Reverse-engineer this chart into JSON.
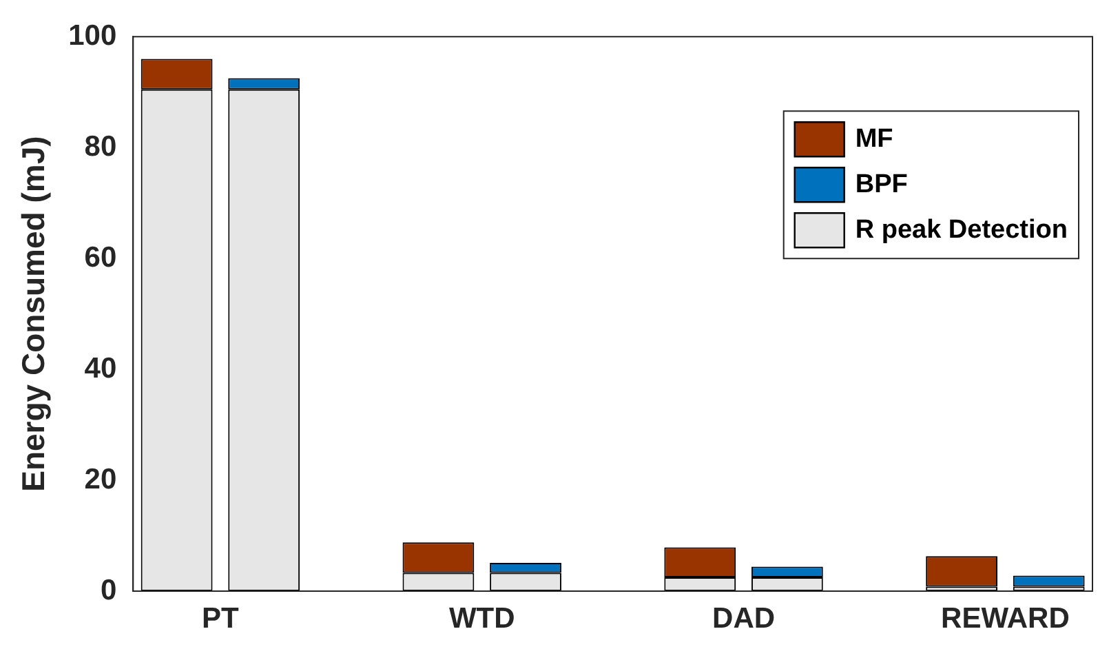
{
  "chart_data": {
    "type": "bar",
    "stacked": true,
    "ylabel": "Energy Consumed (mJ)",
    "categories": [
      "PT",
      null,
      null,
      "WTD",
      null,
      null,
      "DAD",
      null,
      null,
      "REWARD",
      null
    ],
    "series": [
      {
        "name": "R peak Detection",
        "color": "#e6e6e6",
        "values": [
          90.5,
          90.5,
          null,
          3.3,
          3.3,
          null,
          2.5,
          2.5,
          null,
          0.8,
          0.8
        ]
      },
      {
        "name": "MF",
        "color": "#993300",
        "values": [
          5.5,
          null,
          null,
          5.5,
          null,
          null,
          5.4,
          null,
          null,
          5.5,
          null
        ]
      },
      {
        "name": "BPF",
        "color": "#0072bd",
        "values": [
          null,
          2,
          null,
          null,
          1.8,
          null,
          null,
          1.9,
          null,
          null,
          2
        ]
      }
    ],
    "ylim": [
      0,
      100
    ],
    "yticks": [
      0,
      20,
      40,
      60,
      80,
      100
    ],
    "legend": "top right",
    "grid": false
  }
}
